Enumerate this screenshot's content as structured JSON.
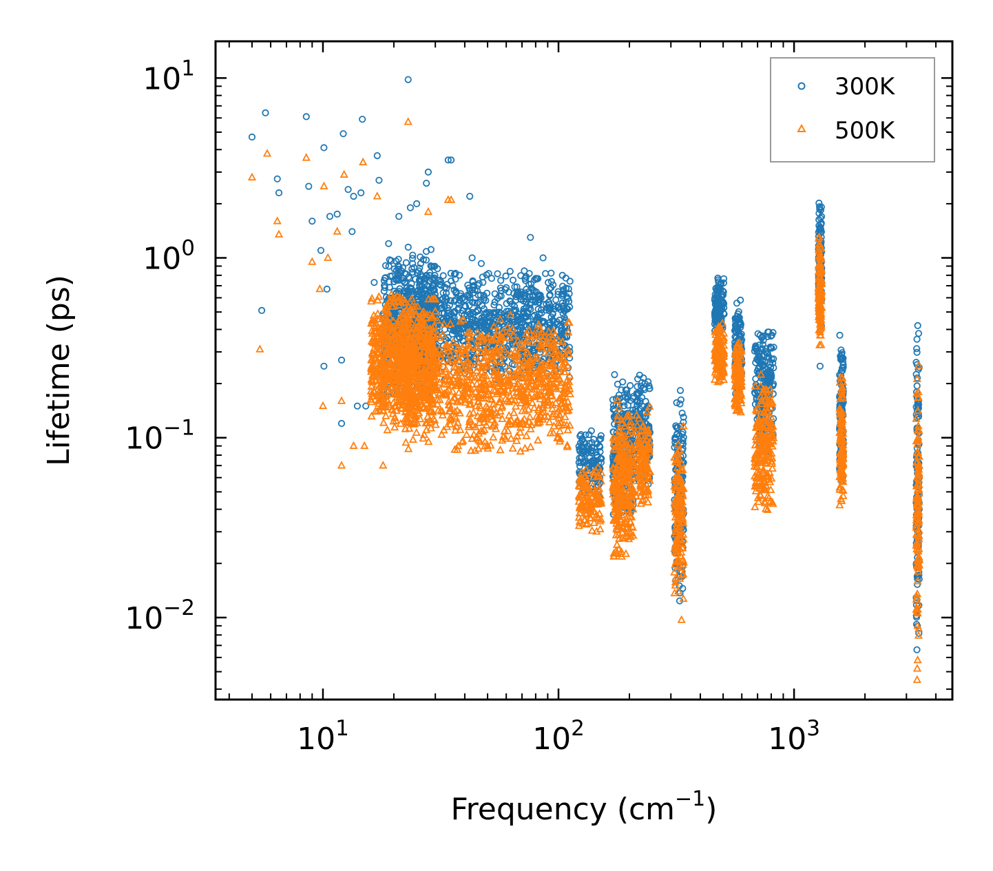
{
  "chart_data": {
    "type": "scatter",
    "xscale": "log",
    "yscale": "log",
    "xlabel": "Frequency (cm",
    "xlabel_sup": "−1",
    "xlabel_end": ")",
    "ylabel": "Lifetime (ps)",
    "xlim": [
      3.5,
      4700
    ],
    "ylim": [
      0.0035,
      16
    ],
    "x_ticks": [
      {
        "value": 10,
        "base": "10",
        "exp": "1"
      },
      {
        "value": 100,
        "base": "10",
        "exp": "2"
      },
      {
        "value": 1000,
        "base": "10",
        "exp": "3"
      }
    ],
    "y_ticks": [
      {
        "value": 0.01,
        "base": "10",
        "exp": "−2"
      },
      {
        "value": 0.1,
        "base": "10",
        "exp": "−1"
      },
      {
        "value": 1,
        "base": "10",
        "exp": "0"
      },
      {
        "value": 10,
        "base": "10",
        "exp": "1"
      }
    ],
    "legend_position": "top-right",
    "series": [
      {
        "name": "300K",
        "marker": "circle",
        "color": "#1f77b4",
        "points": [
          [
            5,
            4.7
          ],
          [
            5.5,
            0.51
          ],
          [
            5.7,
            6.4
          ],
          [
            6.4,
            2.75
          ],
          [
            6.5,
            2.3
          ],
          [
            8.5,
            6.1
          ],
          [
            8.7,
            2.5
          ],
          [
            9,
            1.6
          ],
          [
            9.8,
            1.1
          ],
          [
            10.1,
            4.1
          ],
          [
            10.1,
            0.25
          ],
          [
            10.4,
            0.67
          ],
          [
            10.7,
            1.7
          ],
          [
            11.5,
            1.75
          ],
          [
            12,
            0.27
          ],
          [
            12,
            0.12
          ],
          [
            12.2,
            4.9
          ],
          [
            12.8,
            2.4
          ],
          [
            13.3,
            1.4
          ],
          [
            13.5,
            2.2
          ],
          [
            14,
            0.15
          ],
          [
            14.5,
            2.3
          ],
          [
            14.7,
            5.9
          ],
          [
            15.2,
            0.15
          ],
          [
            16.5,
            0.73
          ],
          [
            17,
            3.7
          ],
          [
            17.3,
            2.7
          ],
          [
            19,
            1.2
          ],
          [
            21,
            1.7
          ],
          [
            23,
            9.8
          ],
          [
            23.5,
            1.9
          ],
          [
            25,
            2.0
          ],
          [
            27.5,
            2.6
          ],
          [
            28,
            3.0
          ],
          [
            34,
            3.5
          ],
          [
            35,
            3.5
          ],
          [
            42,
            2.2
          ],
          [
            43,
            1.0
          ],
          [
            47,
            0.93
          ],
          [
            76,
            1.3
          ],
          [
            86,
            1.0
          ],
          [
            1290,
            0.25
          ],
          [
            3350,
            0.42
          ],
          [
            3380,
            0.38
          ]
        ],
        "bands": [
          {
            "x": [
              18,
              30
            ],
            "y": [
              0.16,
              1.2
            ]
          },
          {
            "x": [
              25,
              112
            ],
            "y": [
              0.2,
              0.9
            ]
          },
          {
            "x": [
              122,
              152
            ],
            "y": [
              0.045,
              0.115
            ]
          },
          {
            "x": [
              170,
              208
            ],
            "y": [
              0.03,
              0.25
            ]
          },
          {
            "x": [
              212,
              245
            ],
            "y": [
              0.05,
              0.23
            ]
          },
          {
            "x": [
              310,
              340
            ],
            "y": [
              0.012,
              0.2
            ]
          },
          {
            "x": [
              460,
              505
            ],
            "y": [
              0.35,
              0.83
            ]
          },
          {
            "x": [
              560,
              600
            ],
            "y": [
              0.16,
              0.6
            ]
          },
          {
            "x": [
              680,
              820
            ],
            "y": [
              0.08,
              0.44
            ]
          },
          {
            "x": [
              1270,
              1310
            ],
            "y": [
              0.4,
              2.2
            ]
          },
          {
            "x": [
              1560,
              1620
            ],
            "y": [
              0.05,
              0.38
            ]
          },
          {
            "x": [
              3300,
              3400
            ],
            "y": [
              0.005,
              0.42
            ]
          }
        ]
      },
      {
        "name": "500K",
        "marker": "triangle",
        "color": "#ff7f0e",
        "points": [
          [
            5,
            2.8
          ],
          [
            5.4,
            0.31
          ],
          [
            5.8,
            3.8
          ],
          [
            6.4,
            1.6
          ],
          [
            6.5,
            1.35
          ],
          [
            8.5,
            3.6
          ],
          [
            9,
            0.95
          ],
          [
            9.7,
            0.67
          ],
          [
            10,
            0.15
          ],
          [
            10.1,
            2.5
          ],
          [
            10.5,
            1.0
          ],
          [
            11.5,
            1.4
          ],
          [
            12,
            0.07
          ],
          [
            12,
            0.16
          ],
          [
            12.3,
            2.9
          ],
          [
            13.5,
            0.09
          ],
          [
            14.8,
            3.4
          ],
          [
            15,
            0.09
          ],
          [
            17,
            2.2
          ],
          [
            18,
            0.07
          ],
          [
            23,
            5.7
          ],
          [
            28,
            1.8
          ],
          [
            34,
            2.1
          ],
          [
            35,
            2.1
          ],
          [
            333,
            0.0097
          ],
          [
            3330,
            0.0045
          ]
        ],
        "bands": [
          {
            "x": [
              16,
              30
            ],
            "y": [
              0.1,
              0.7
            ]
          },
          {
            "x": [
              22,
              112
            ],
            "y": [
              0.08,
              0.5
            ]
          },
          {
            "x": [
              122,
              152
            ],
            "y": [
              0.028,
              0.07
            ]
          },
          {
            "x": [
              170,
              208
            ],
            "y": [
              0.018,
              0.17
            ]
          },
          {
            "x": [
              212,
              245
            ],
            "y": [
              0.04,
              0.15
            ]
          },
          {
            "x": [
              310,
              340
            ],
            "y": [
              0.011,
              0.12
            ]
          },
          {
            "x": [
              460,
              505
            ],
            "y": [
              0.19,
              0.46
            ]
          },
          {
            "x": [
              560,
              600
            ],
            "y": [
              0.13,
              0.35
            ]
          },
          {
            "x": [
              680,
              820
            ],
            "y": [
              0.035,
              0.23
            ]
          },
          {
            "x": [
              1270,
              1310
            ],
            "y": [
              0.3,
              1.4
            ]
          },
          {
            "x": [
              1560,
              1620
            ],
            "y": [
              0.038,
              0.24
            ]
          },
          {
            "x": [
              3300,
              3400
            ],
            "y": [
              0.0045,
              0.26
            ]
          }
        ]
      }
    ]
  }
}
